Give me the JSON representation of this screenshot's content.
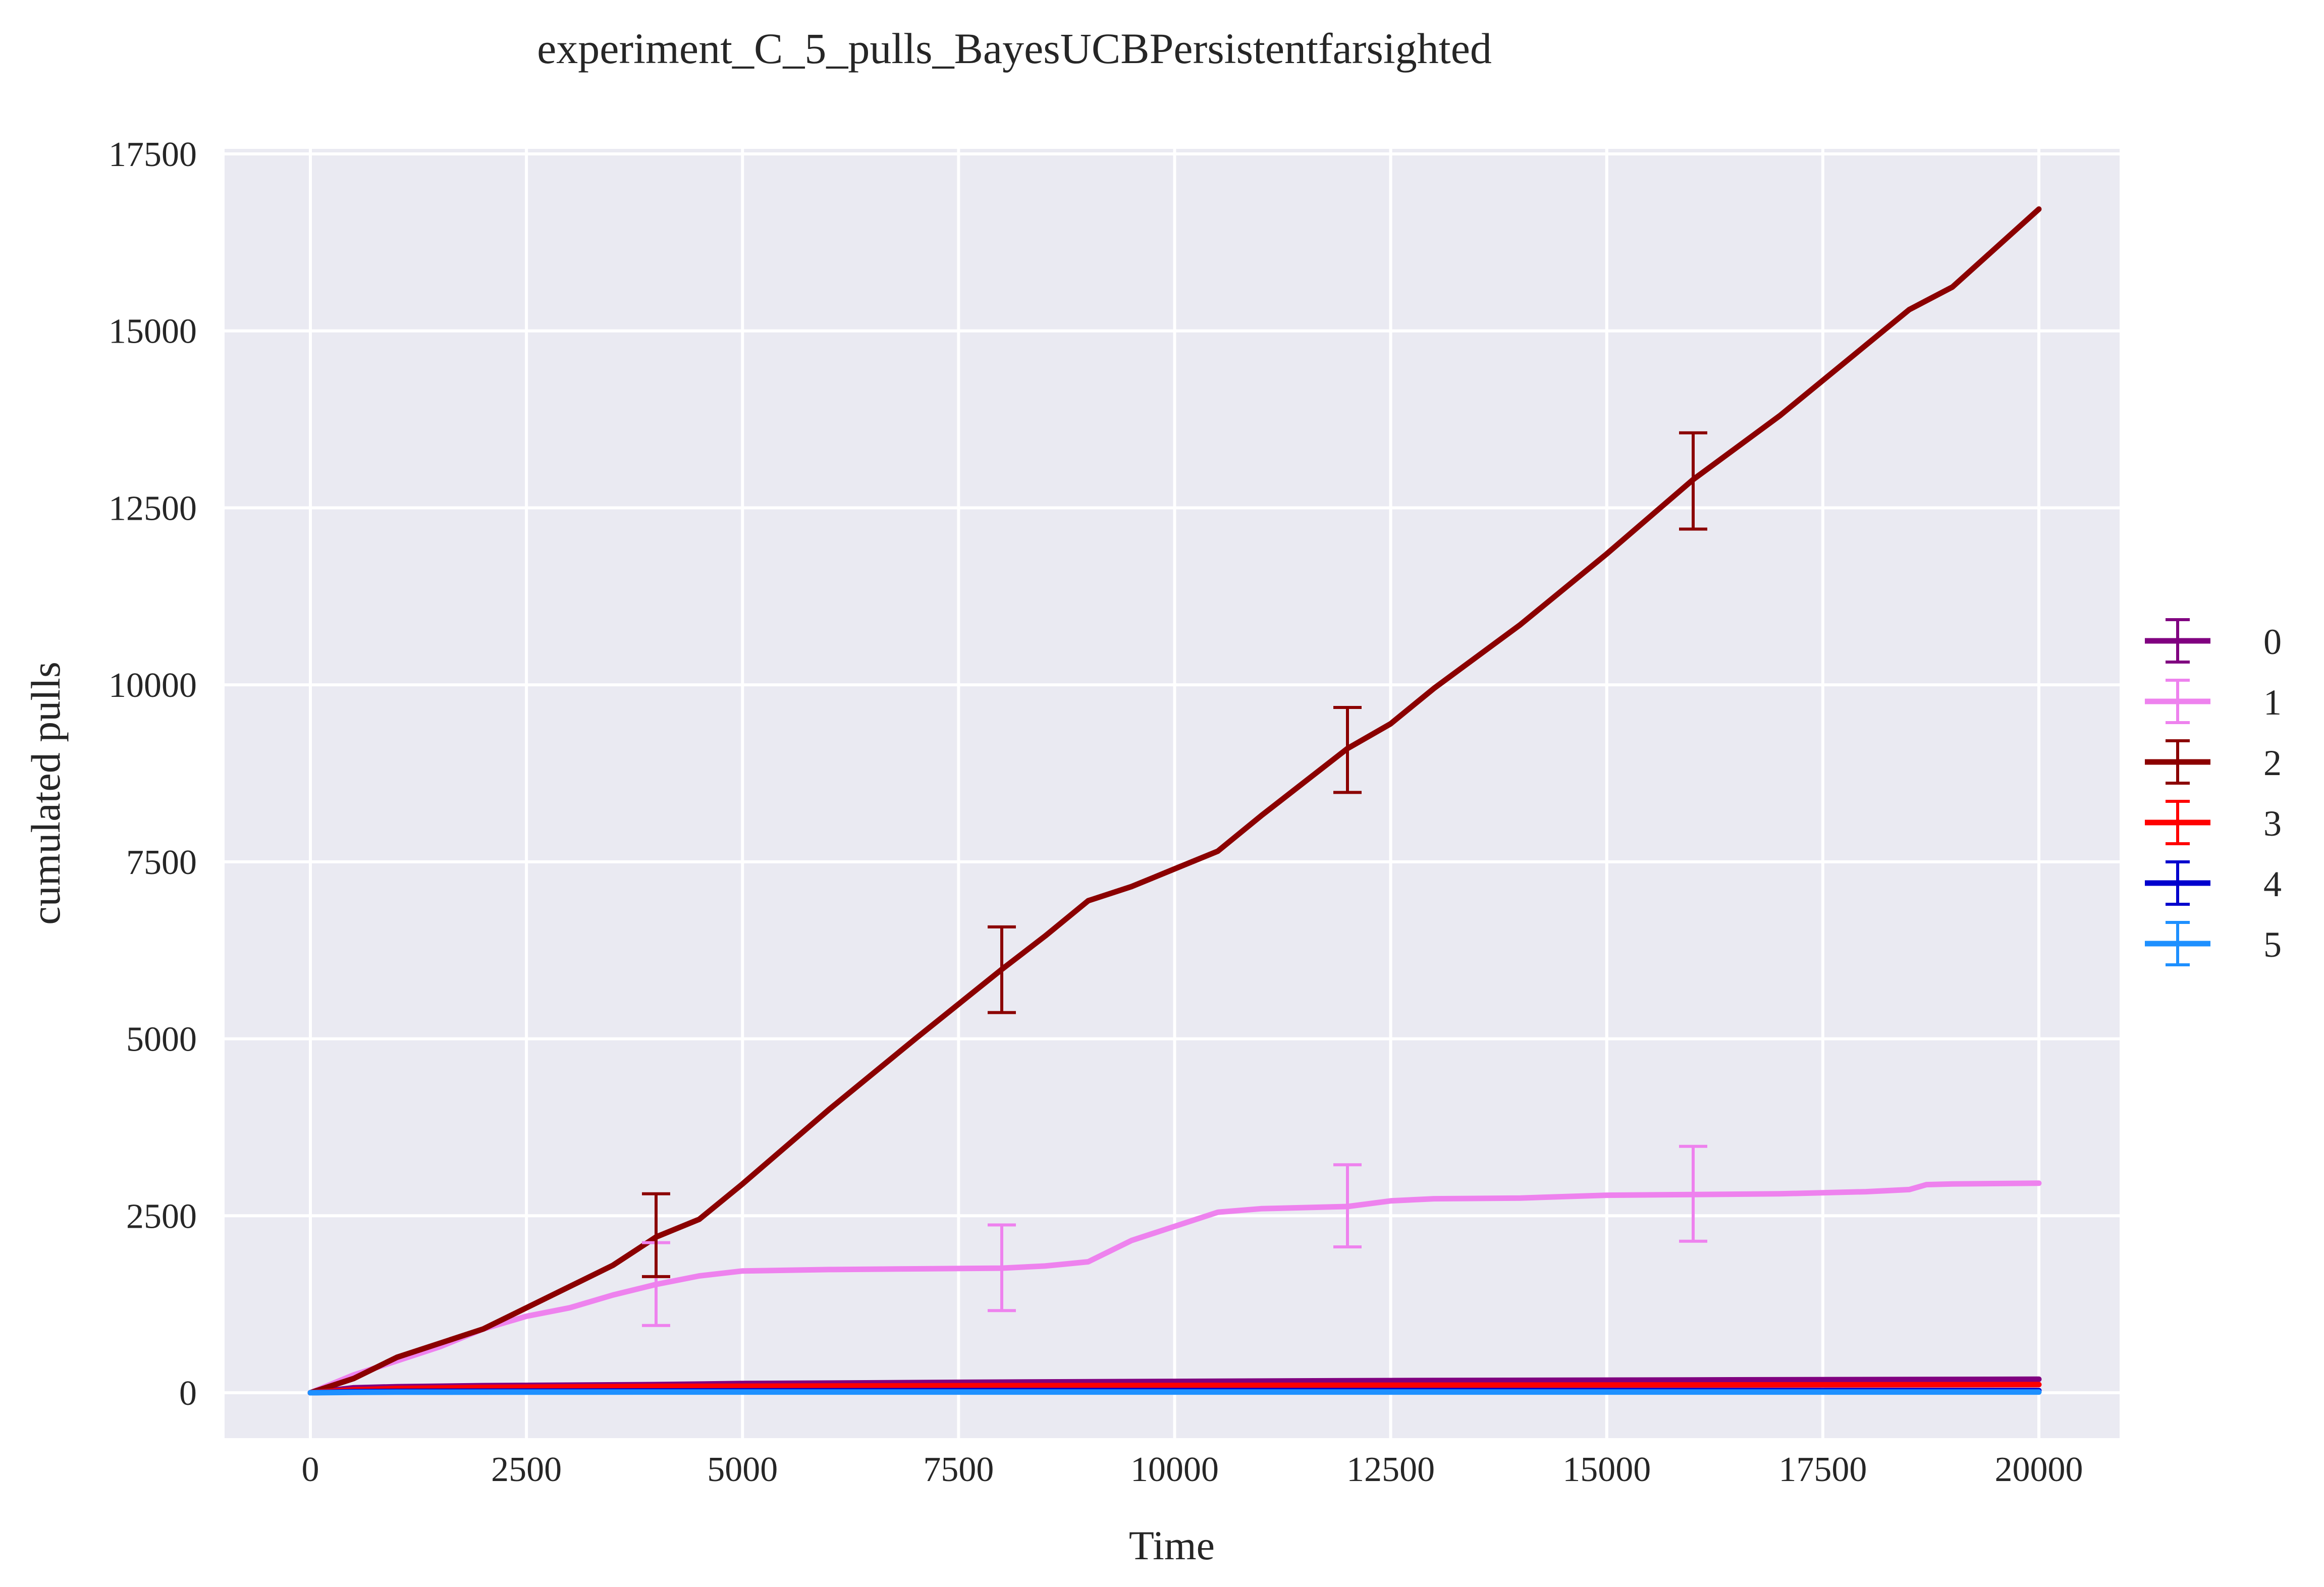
{
  "chart_data": {
    "type": "line",
    "title": "experiment_C_5_pulls_BayesUCBPersistentfarsighted",
    "xlabel": "Time",
    "ylabel": "cumulated pulls",
    "xlim": [
      -1000,
      21000
    ],
    "ylim": [
      -850,
      17650
    ],
    "xticks": [
      "0",
      "2500",
      "5000",
      "7500",
      "10000",
      "12500",
      "15000",
      "17500",
      "20000"
    ],
    "yticks": [
      "0",
      "2500",
      "5000",
      "7500",
      "10000",
      "12500",
      "15000",
      "17500"
    ],
    "grid": true,
    "legend_position": "right-center",
    "background": "#eaeaf2",
    "series": [
      {
        "name": "0",
        "color": "#800080",
        "x": [
          0,
          500,
          1000,
          2000,
          4000,
          5000,
          8000,
          12000,
          16000,
          20000
        ],
        "y": [
          0,
          70,
          85,
          100,
          115,
          130,
          150,
          170,
          180,
          190
        ],
        "errorbars": []
      },
      {
        "name": "1",
        "color": "#ee82ee",
        "x": [
          0,
          500,
          1000,
          1500,
          2000,
          2500,
          3000,
          3500,
          4000,
          4500,
          5000,
          6000,
          7000,
          8000,
          8500,
          9000,
          9500,
          10000,
          10500,
          11000,
          12000,
          12500,
          13000,
          14000,
          15000,
          16000,
          17000,
          18000,
          18500,
          18700,
          19000,
          20000
        ],
        "y": [
          0,
          250,
          450,
          650,
          900,
          1080,
          1200,
          1380,
          1530,
          1650,
          1720,
          1740,
          1750,
          1760,
          1790,
          1850,
          2150,
          2350,
          2550,
          2600,
          2630,
          2710,
          2740,
          2750,
          2790,
          2800,
          2810,
          2840,
          2870,
          2940,
          2950,
          2960
        ],
        "errorbars": [
          {
            "x": 4000,
            "y": 1530,
            "low": 950,
            "high": 2120
          },
          {
            "x": 8000,
            "y": 1760,
            "low": 1160,
            "high": 2370
          },
          {
            "x": 12000,
            "y": 2630,
            "low": 2060,
            "high": 3220
          },
          {
            "x": 16000,
            "y": 2800,
            "low": 2140,
            "high": 3480
          }
        ]
      },
      {
        "name": "2",
        "color": "#8b0000",
        "x": [
          0,
          500,
          1000,
          1500,
          2000,
          2500,
          3000,
          3500,
          4000,
          4500,
          5000,
          6000,
          7000,
          8000,
          8500,
          9000,
          9500,
          10000,
          10500,
          11000,
          12000,
          12500,
          13000,
          14000,
          15000,
          16000,
          17000,
          18000,
          18500,
          19000,
          20000
        ],
        "y": [
          0,
          200,
          500,
          700,
          900,
          1200,
          1500,
          1800,
          2200,
          2450,
          2950,
          4000,
          5000,
          5980,
          6450,
          6950,
          7150,
          7400,
          7650,
          8150,
          9100,
          9450,
          9950,
          10850,
          11850,
          12900,
          13800,
          14800,
          15300,
          15620,
          16720
        ],
        "errorbars": [
          {
            "x": 4000,
            "y": 2220,
            "low": 1640,
            "high": 2810
          },
          {
            "x": 8000,
            "y": 5980,
            "low": 5370,
            "high": 6580
          },
          {
            "x": 12000,
            "y": 9080,
            "low": 8480,
            "high": 9680
          },
          {
            "x": 16000,
            "y": 12880,
            "low": 12200,
            "high": 13560
          }
        ]
      },
      {
        "name": "3",
        "color": "#ff0000",
        "x": [
          0,
          500,
          1000,
          2000,
          4000,
          8000,
          12000,
          16000,
          20000
        ],
        "y": [
          0,
          40,
          60,
          75,
          90,
          100,
          105,
          110,
          115
        ],
        "errorbars": []
      },
      {
        "name": "4",
        "color": "#0000cd",
        "x": [
          0,
          500,
          1000,
          4000,
          8000,
          12000,
          16000,
          20000
        ],
        "y": [
          0,
          15,
          20,
          25,
          30,
          30,
          30,
          30
        ],
        "errorbars": []
      },
      {
        "name": "5",
        "color": "#1e90ff",
        "x": [
          0,
          500,
          1000,
          4000,
          8000,
          12000,
          16000,
          20000
        ],
        "y": [
          0,
          5,
          8,
          10,
          10,
          10,
          10,
          10
        ],
        "errorbars": []
      }
    ]
  }
}
